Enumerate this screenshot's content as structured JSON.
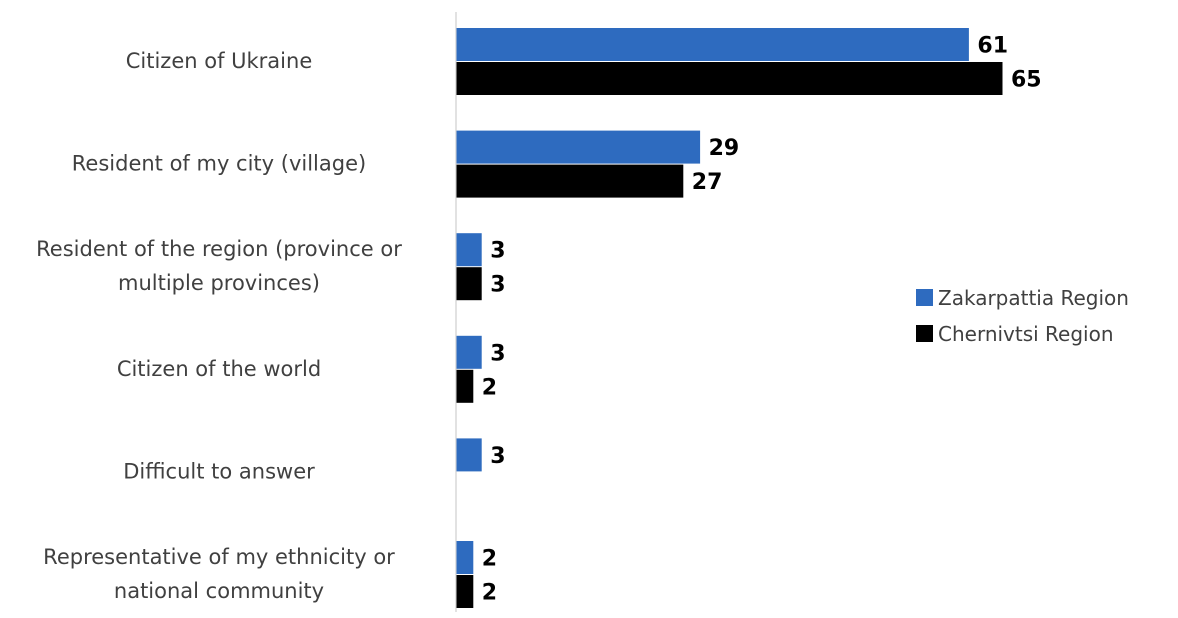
{
  "chart_data": {
    "type": "bar",
    "orientation": "horizontal",
    "categories": [
      "Citizen of Ukraine",
      "Resident of my city (village)",
      "Resident of the region (province or multiple provinces)",
      "Citizen of the world",
      "Difficult to answer",
      "Representative of my ethnicity or national community"
    ],
    "category_lines": [
      [
        "Citizen of Ukraine"
      ],
      [
        "Resident of my city (village)"
      ],
      [
        "Resident of the region (province or",
        "multiple provinces)"
      ],
      [
        "Citizen of the world"
      ],
      [
        "Difficult to answer"
      ],
      [
        "Representative of my ethnicity or",
        "national community"
      ]
    ],
    "series": [
      {
        "name": "Zakarpattia Region",
        "color": "#2e6bbf",
        "values": [
          61,
          29,
          3,
          3,
          3,
          2
        ]
      },
      {
        "name": "Chernivtsi Region",
        "color": "#000000",
        "values": [
          65,
          27,
          3,
          2,
          null,
          2
        ]
      }
    ],
    "xlim": [
      0,
      85
    ],
    "grid": false,
    "legend_position": "right",
    "title": "",
    "xlabel": "",
    "ylabel": ""
  }
}
